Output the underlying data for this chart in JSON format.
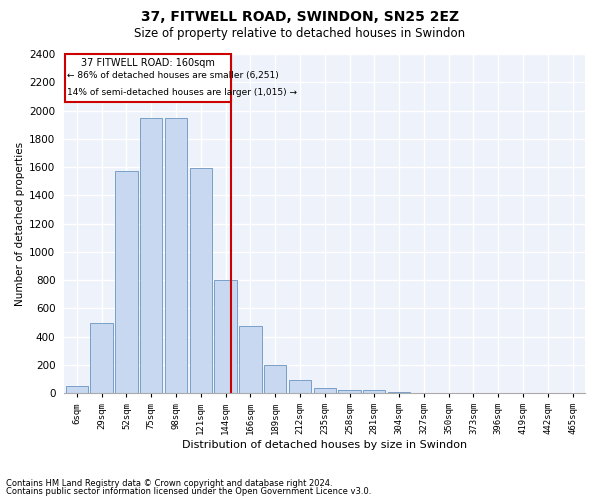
{
  "title1": "37, FITWELL ROAD, SWINDON, SN25 2EZ",
  "title2": "Size of property relative to detached houses in Swindon",
  "xlabel": "Distribution of detached houses by size in Swindon",
  "ylabel": "Number of detached properties",
  "footnote1": "Contains HM Land Registry data © Crown copyright and database right 2024.",
  "footnote2": "Contains public sector information licensed under the Open Government Licence v3.0.",
  "annotation_line1": "37 FITWELL ROAD: 160sqm",
  "annotation_line2": "← 86% of detached houses are smaller (6,251)",
  "annotation_line3": "14% of semi-detached houses are larger (1,015) →",
  "bar_color": "#c8d8f0",
  "bar_edge_color": "#7a9fc8",
  "vline_color": "#cc0000",
  "annotation_box_edgecolor": "#cc0000",
  "annotation_box_facecolor": "#ffffff",
  "background_color": "#eef2fa",
  "grid_color": "#ffffff",
  "categories": [
    "6sqm",
    "29sqm",
    "52sqm",
    "75sqm",
    "98sqm",
    "121sqm",
    "144sqm",
    "166sqm",
    "189sqm",
    "212sqm",
    "235sqm",
    "258sqm",
    "281sqm",
    "304sqm",
    "327sqm",
    "350sqm",
    "373sqm",
    "396sqm",
    "419sqm",
    "442sqm",
    "465sqm"
  ],
  "values": [
    52,
    500,
    1575,
    1950,
    1950,
    1590,
    800,
    475,
    200,
    90,
    35,
    25,
    20,
    8,
    2,
    2,
    0,
    0,
    0,
    0,
    0
  ],
  "ylim": [
    0,
    2400
  ],
  "yticks": [
    0,
    200,
    400,
    600,
    800,
    1000,
    1200,
    1400,
    1600,
    1800,
    2000,
    2200,
    2400
  ],
  "figsize": [
    6.0,
    5.0
  ],
  "dpi": 100
}
